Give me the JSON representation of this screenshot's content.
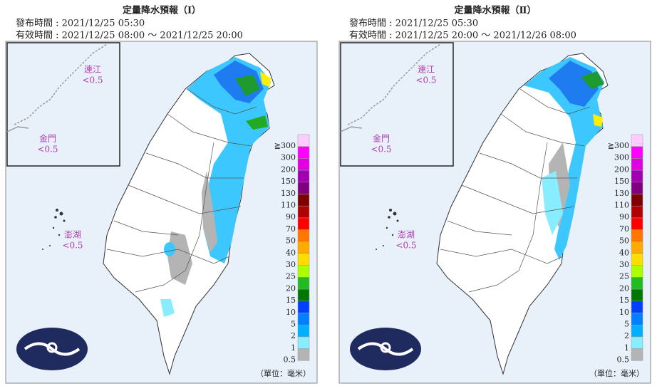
{
  "panels": [
    {
      "title": "定量降水預報（Ⅰ）",
      "issued": "發布時間 : 2021/12/25 05:30",
      "valid": "有效時間 : 2021/12/25 08:00 ～ 2021/12/25 20:00",
      "islands": [
        {
          "name": "連江",
          "value": "<0.5"
        },
        {
          "name": "金門",
          "value": "<0.5"
        },
        {
          "name": "澎湖",
          "value": "<0.5"
        }
      ],
      "legend_labels": [
        "≧300",
        "300",
        "200",
        "150",
        "130",
        "110",
        "90",
        "70",
        "50",
        "40",
        "30",
        "25",
        "20",
        "15",
        "10",
        "5",
        "2",
        "1",
        "0.5"
      ],
      "unit": "（單位：毫米）"
    },
    {
      "title": "定量降水預報（Ⅱ）",
      "issued": "發布時間 : 2021/12/25 05:30",
      "valid": "有效時間 : 2021/12/25 20:00 ～ 2021/12/26 08:00",
      "islands": [
        {
          "name": "連江",
          "value": "<0.5"
        },
        {
          "name": "金門",
          "value": "<0.5"
        },
        {
          "name": "澎湖",
          "value": "<0.5"
        }
      ],
      "legend_labels": [
        "≧300",
        "300",
        "200",
        "150",
        "130",
        "110",
        "90",
        "70",
        "50",
        "40",
        "30",
        "25",
        "20",
        "15",
        "10",
        "5",
        "2",
        "1",
        "0.5"
      ],
      "unit": "（單位：毫米）"
    }
  ],
  "legend_colors": [
    "#ffccff",
    "#ff00ff",
    "#e000e0",
    "#a000b0",
    "#800080",
    "#800000",
    "#b00000",
    "#ff0000",
    "#ff7700",
    "#ffaa00",
    "#ffdd00",
    "#aaff00",
    "#22bb22",
    "#007700",
    "#0040ff",
    "#0080ff",
    "#00b0ff",
    "#88eeff",
    "#b4b4b4"
  ]
}
